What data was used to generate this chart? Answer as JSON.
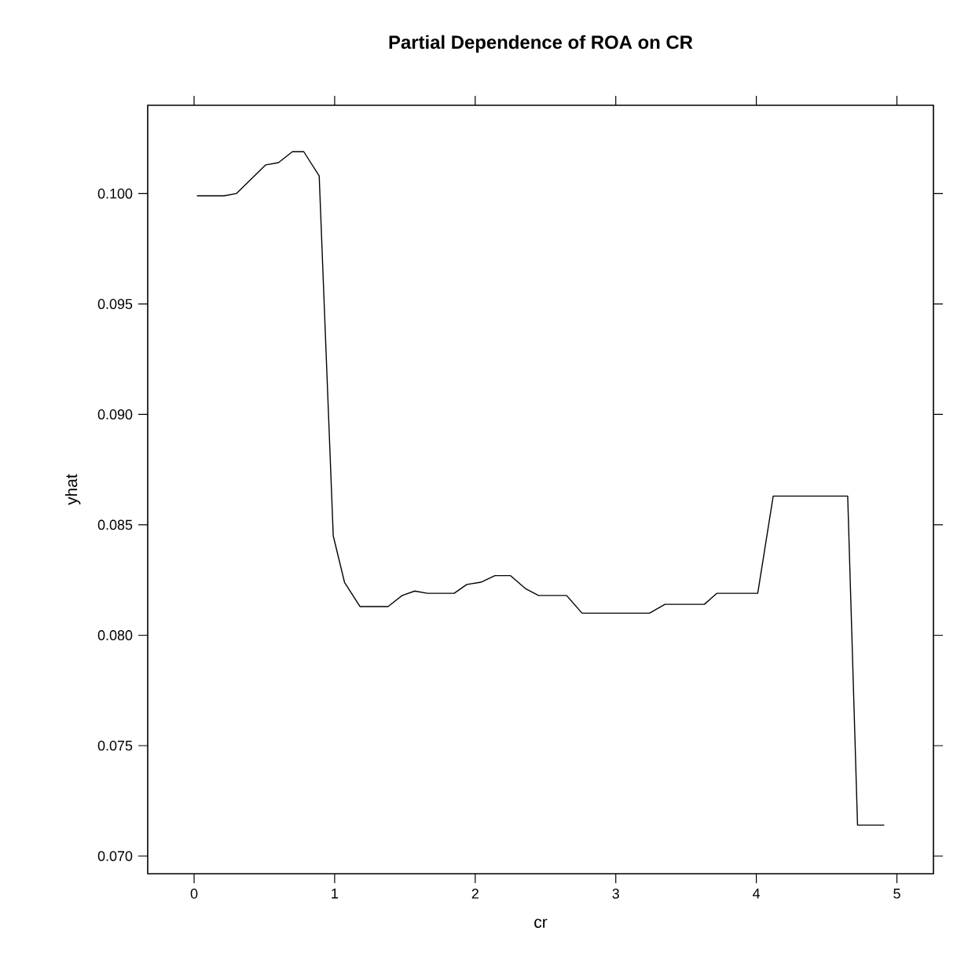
{
  "chart_data": {
    "type": "line",
    "title": "Partial Dependence of ROA on CR",
    "xlabel": "cr",
    "ylabel": "yhat",
    "x": [
      0.02,
      0.21,
      0.3,
      0.51,
      0.6,
      0.7,
      0.78,
      0.89,
      0.99,
      1.07,
      1.18,
      1.38,
      1.48,
      1.57,
      1.66,
      1.85,
      1.94,
      2.04,
      2.14,
      2.25,
      2.36,
      2.45,
      2.65,
      2.76,
      3.24,
      3.35,
      3.63,
      3.72,
      4.01,
      4.12,
      4.65,
      4.72,
      4.91
    ],
    "series": [
      {
        "color": "#000000",
        "values": [
          0.0999,
          0.0999,
          0.1,
          0.1013,
          0.1014,
          0.1019,
          0.1019,
          0.1008,
          0.0845,
          0.0824,
          0.0813,
          0.0813,
          0.0818,
          0.082,
          0.0819,
          0.0819,
          0.0823,
          0.0824,
          0.0827,
          0.0827,
          0.0821,
          0.0818,
          0.0818,
          0.081,
          0.081,
          0.0814,
          0.0814,
          0.0819,
          0.0819,
          0.0863,
          0.0863,
          0.0714,
          0.0714
        ]
      }
    ],
    "xlim": [
      -0.33,
      5.26
    ],
    "ylim": [
      0.0692,
      0.104
    ],
    "xticks": [
      0,
      1,
      2,
      3,
      4,
      5
    ],
    "yticks": [
      {
        "value": 0.07,
        "label": "0.070"
      },
      {
        "value": 0.075,
        "label": "0.075"
      },
      {
        "value": 0.08,
        "label": "0.080"
      },
      {
        "value": 0.085,
        "label": "0.085"
      },
      {
        "value": 0.09,
        "label": "0.090"
      },
      {
        "value": 0.095,
        "label": "0.095"
      },
      {
        "value": 0.1,
        "label": "0.100"
      }
    ],
    "grid": false,
    "marker": "none",
    "line_style": "solid"
  }
}
